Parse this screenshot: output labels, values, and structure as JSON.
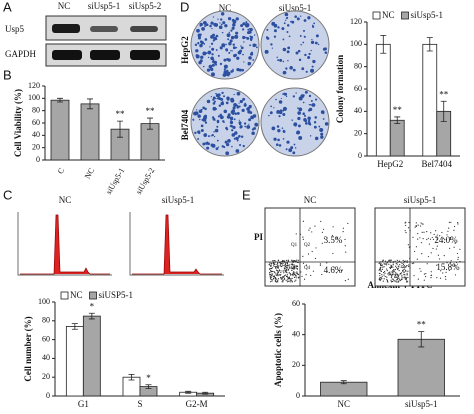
{
  "panels": [
    "A",
    "B",
    "C",
    "D",
    "E"
  ],
  "blot": {
    "lanes": [
      "NC",
      "siUsp5-1",
      "siUsp5-2"
    ],
    "rows": [
      "Usp5",
      "GAPDH"
    ]
  },
  "colony": {
    "columns": [
      "NC",
      "siUsp5-1"
    ],
    "rows": [
      "HepG2",
      "Bel7404"
    ]
  },
  "cell_cycle": {
    "columns": [
      "NC",
      "siUsp5-1"
    ]
  },
  "apoptosis": {
    "columns": [
      "NC",
      "siUsp5-1"
    ],
    "y_axis": "PI",
    "x_axis": "Annexin V-FITC",
    "gates": [
      "Q1",
      "Q2",
      "Q3",
      "Q4"
    ],
    "quadrants": [
      [
        "3.5%",
        "4.6%"
      ],
      [
        "24.0%",
        "15.8%"
      ]
    ]
  },
  "chart_data": [
    {
      "type": "bar",
      "y_label": "Cell Viability (%)",
      "categories": [
        "C",
        "NC",
        "siUsp5-1",
        "siUsp5-2"
      ],
      "values": [
        97,
        91,
        50,
        59
      ],
      "errors": [
        3,
        8,
        13,
        9
      ],
      "annotations": [
        null,
        null,
        "**",
        "**"
      ],
      "color": "#a6a6a6",
      "ylim": [
        0,
        120
      ],
      "yticks": [
        0,
        20,
        40,
        60,
        80,
        100,
        120
      ]
    },
    {
      "type": "bar",
      "y_label": "Colony formation",
      "categories": [
        "HepG2",
        "Bel7404"
      ],
      "series": [
        {
          "name": "NC",
          "color": "#ffffff",
          "values": [
            100,
            100
          ],
          "errors": [
            8,
            6
          ]
        },
        {
          "name": "siUsp5-1",
          "color": "#a6a6a6",
          "values": [
            32,
            40
          ],
          "errors": [
            3,
            9
          ],
          "annotations": [
            "**",
            "**"
          ]
        }
      ],
      "ylim": [
        0,
        120
      ],
      "yticks": [
        0,
        20,
        40,
        60,
        80,
        100,
        120
      ]
    },
    {
      "type": "bar",
      "y_label": "Cell number (%)",
      "categories": [
        "G1",
        "S",
        "G2-M"
      ],
      "series": [
        {
          "name": "NC",
          "color": "#ffffff",
          "values": [
            74,
            20,
            4
          ],
          "errors": [
            3,
            3,
            1
          ]
        },
        {
          "name": "siUSP5-1",
          "color": "#a6a6a6",
          "values": [
            85,
            10,
            3
          ],
          "errors": [
            3,
            2,
            1
          ],
          "annotations": [
            "*",
            "*",
            null
          ]
        }
      ],
      "ylim": [
        0,
        100
      ],
      "yticks": [
        0,
        20,
        40,
        60,
        80,
        100
      ]
    },
    {
      "type": "bar",
      "y_label": "Apoptotic cells (%)",
      "categories": [
        "NC",
        "siUsp5-1"
      ],
      "values": [
        9,
        37
      ],
      "errors": [
        1,
        5
      ],
      "annotations": [
        null,
        "**"
      ],
      "color": "#a6a6a6",
      "ylim": [
        0,
        60
      ],
      "yticks": [
        0,
        20,
        40,
        60
      ]
    }
  ]
}
